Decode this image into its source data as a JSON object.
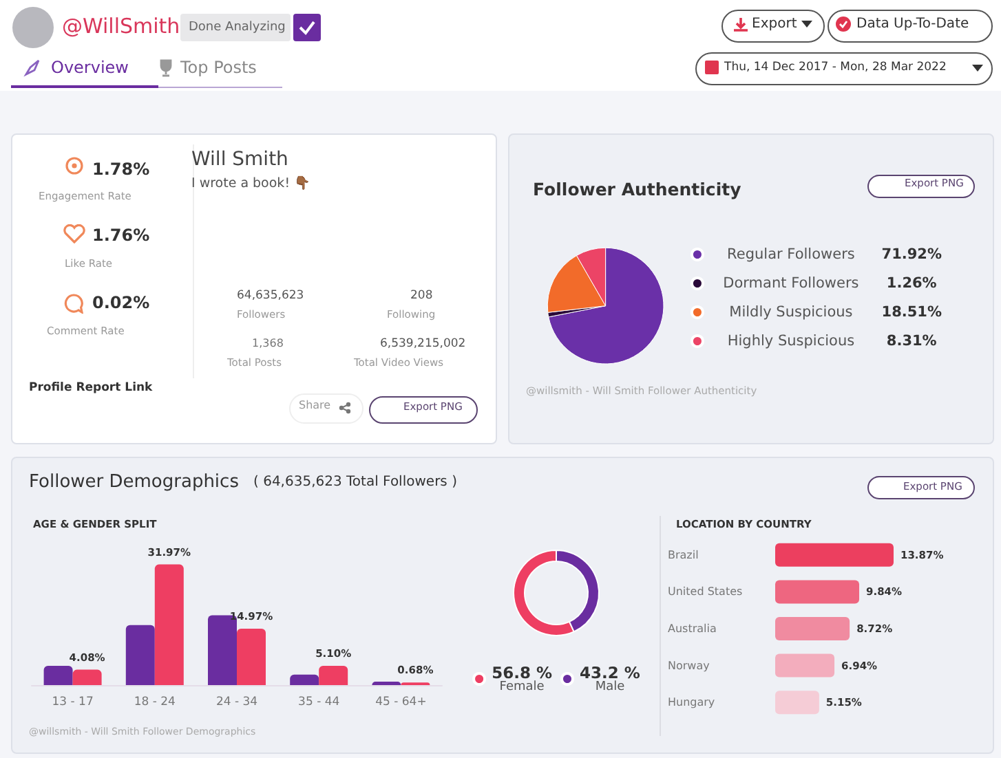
{
  "chart_data": [
    {
      "type": "other",
      "annotations": [
        "@WillSmith",
        "Done Analyzing",
        "Overview",
        "Top Posts",
        "Export",
        "Data Up-To-Date",
        "Thu, 14 Dec 2017 - Mon, 28 Mar 2022",
        "1.78%",
        "Engagement Rate",
        "1.76%",
        "Like Rate",
        "0.02%",
        "Comment Rate",
        "Will Smith",
        "I wrote a book! 👇🏾",
        "64,635,623",
        "Followers",
        "208",
        "Following",
        "1,368",
        "Total Posts",
        "6,539,215,002",
        "Total Video Views",
        "Profile Report Link",
        "Share",
        "Export PNG",
        "Follower Demographics",
        "( 64,635,623 Total Followers )",
        "Export PNG",
        "@willsmith - Will Smith Follower Demographics"
      ]
    },
    {
      "type": "pie",
      "title": "Follower Authenticity",
      "categories": [
        "Regular Followers",
        "Dormant Followers",
        "Mildly Suspicious",
        "Highly Suspicious"
      ],
      "values": [
        71.92,
        1.26,
        18.51,
        8.31
      ],
      "colors": [
        "#6a30a8",
        "#2a0a3a",
        "#f26b2a",
        "#ec4466"
      ],
      "value_labels": [
        "71.92%",
        "1.26%",
        "18.51%",
        "8.31%"
      ],
      "legend": "right",
      "annotations": [
        "Export PNG",
        "@willsmith - Will Smith Follower Authenticity"
      ]
    },
    {
      "type": "bar",
      "title": "AGE & GENDER SPLIT",
      "categories": [
        "13 - 17",
        "18 - 24",
        "24 - 34",
        "35 - 44",
        "45 - 64+"
      ],
      "series": [
        {
          "color": "#6a2da0",
          "values": [
            5.1,
            15.9,
            18.5,
            2.8,
            0.9
          ]
        },
        {
          "color": "#ee3e62",
          "values": [
            4.08,
            31.97,
            14.97,
            5.1,
            0.68
          ],
          "value_labels": [
            "4.08%",
            "31.97%",
            "14.97%",
            "5.10%",
            "0.68%"
          ]
        }
      ]
    },
    {
      "type": "donut",
      "categories": [
        "Female",
        "Male"
      ],
      "values": [
        56.8,
        43.2
      ],
      "colors": [
        "#ee3e62",
        "#6a2da0"
      ],
      "value_labels": [
        "56.8 %",
        "43.2 %"
      ],
      "legend": "bottom"
    },
    {
      "type": "bar",
      "orientation": "horizontal",
      "title": "LOCATION BY COUNTRY",
      "categories": [
        "Brazil",
        "United States",
        "Australia",
        "Norway",
        "Hungary"
      ],
      "values": [
        13.87,
        9.84,
        8.72,
        6.94,
        5.15
      ],
      "colors": [
        "#ec3f5f",
        "#ee6680",
        "#f08ba0",
        "#f3adbd",
        "#f5ccd6"
      ],
      "value_labels": [
        "13.87%",
        "9.84%",
        "8.72%",
        "6.94%",
        "5.15%"
      ]
    }
  ]
}
